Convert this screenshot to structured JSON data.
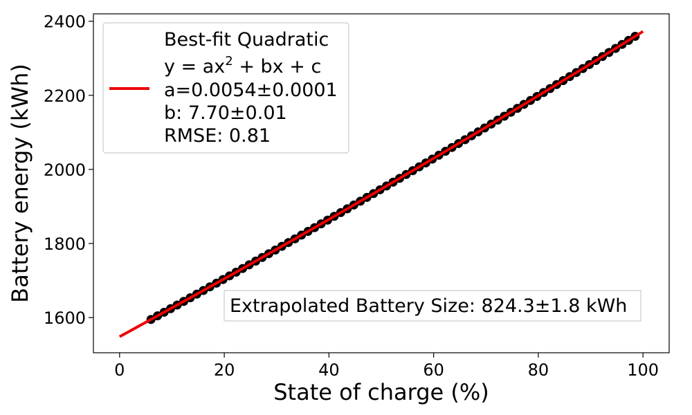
{
  "chart_data": {
    "type": "scatter",
    "title": "",
    "xlabel": "State of charge (%)",
    "ylabel": "Battery energy (kWh)",
    "xlim": [
      -5,
      105
    ],
    "ylim": [
      1505,
      2420
    ],
    "xticks": [
      0,
      20,
      40,
      60,
      80,
      100
    ],
    "yticks": [
      1600,
      1800,
      2000,
      2200,
      2400
    ],
    "grid": false,
    "legend_placement": "upper-left",
    "colors": {
      "points": "#000000",
      "fit_line": "#ee0000"
    },
    "scatter": {
      "x_start": 6,
      "x_end": 98.5,
      "x_step": 1.25,
      "fit": {
        "a": 0.0054,
        "b": 7.7,
        "c": 1548.5
      }
    },
    "fit_line": {
      "x_start": 0,
      "x_end": 100,
      "a": 0.0054,
      "b": 7.7,
      "c": 1548.5
    },
    "legend": {
      "line1": "Best-fit Quadratic",
      "line2_prefix": "y = ax",
      "line2_sup": "2",
      "line2_suffix": " + bx + c",
      "line3": "a=0.0054±0.0001",
      "line4": "b: 7.70±0.01",
      "line5": "RMSE: 0.81"
    },
    "annotation": "Extrapolated Battery Size: 824.3±1.8 kWh"
  }
}
